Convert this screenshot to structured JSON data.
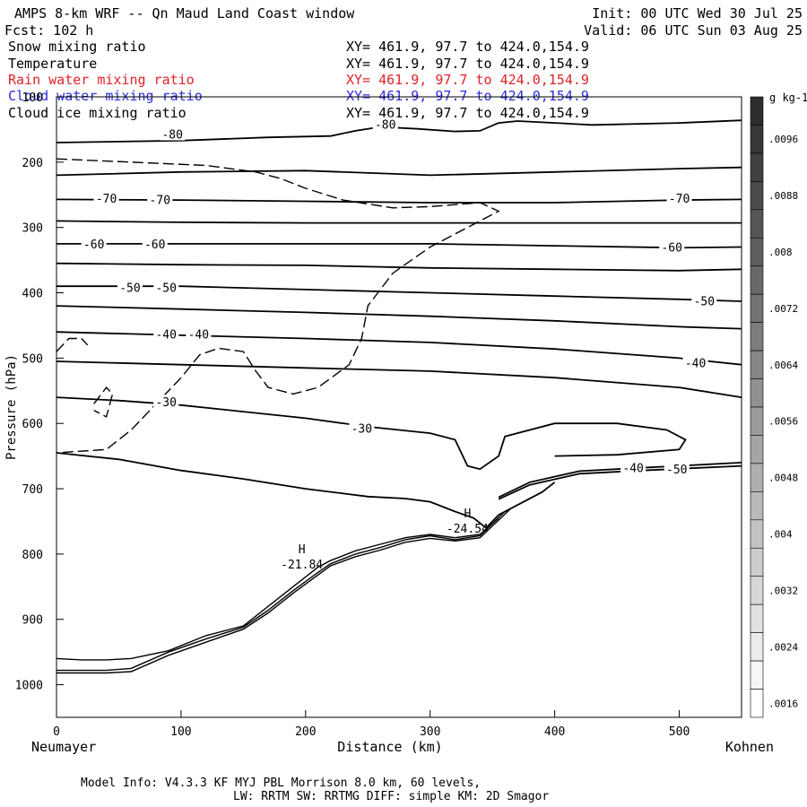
{
  "header": {
    "title": "AMPS 8-km WRF -- Qn Maud Land Coast window",
    "init": "Init: 00 UTC Wed 30 Jul 25",
    "fcst": "Fcst: 102 h",
    "valid": "Valid: 06 UTC Sun 03 Aug 25"
  },
  "fields": [
    {
      "label": "Snow mixing ratio",
      "xy": "XY= 461.9, 97.7 to 424.0,154.9",
      "color": "#000000"
    },
    {
      "label": "Temperature",
      "xy": "XY= 461.9, 97.7 to 424.0,154.9",
      "color": "#000000"
    },
    {
      "label": "Rain water mixing ratio",
      "xy": "XY= 461.9, 97.7 to 424.0,154.9",
      "color": "#e0222a"
    },
    {
      "label": "Cloud water mixing ratio",
      "xy": "XY= 461.9, 97.7 to 424.0,154.9",
      "color": "#2c2cd8"
    },
    {
      "label": "Cloud ice mixing ratio",
      "xy": "XY= 461.9, 97.7 to 424.0,154.9",
      "color": "#000000"
    }
  ],
  "footer": {
    "line1": "Model Info: V4.3.3   KF      MYJ PBL  Morrison             8.0 km,  60 levels,",
    "line2": "LW: RRTM SW: RRTMG   DIFF: simple KM: 2D Smagor"
  },
  "chart_data": {
    "type": "contour",
    "xlabel": "Distance (km)",
    "ylabel": "Pressure (hPa)",
    "xlim": [
      0,
      550
    ],
    "ylim": [
      1050,
      100
    ],
    "x_ticks": [
      0,
      100,
      200,
      300,
      400,
      500
    ],
    "y_ticks": [
      100,
      200,
      300,
      400,
      500,
      600,
      700,
      800,
      900,
      1000
    ],
    "endpoint_left": "Neumayer",
    "endpoint_right": "Kohnen",
    "colorbar": {
      "unit": "g kg-1",
      "ticks": [
        ".0096",
        ".0088",
        ".008",
        ".0072",
        ".0064",
        ".0056",
        ".0048",
        ".004",
        ".0032",
        ".0024",
        ".0016"
      ],
      "n_bins": 22
    },
    "highs": [
      {
        "label": "H",
        "value": "-21.84",
        "x": 197,
        "p": 810
      },
      {
        "label": "H",
        "value": "-24.54",
        "x": 330,
        "p": 755
      }
    ],
    "temperature_contours": [
      {
        "level": -80,
        "labels": [
          {
            "text": "-80",
            "x": 93,
            "p": 157
          },
          {
            "text": "-80",
            "x": 264,
            "p": 142
          }
        ],
        "points": [
          [
            0,
            170
          ],
          [
            100,
            167
          ],
          [
            170,
            162
          ],
          [
            220,
            160
          ],
          [
            240,
            152
          ],
          [
            260,
            146
          ],
          [
            290,
            149
          ],
          [
            320,
            153
          ],
          [
            340,
            152
          ],
          [
            355,
            140
          ],
          [
            370,
            137
          ],
          [
            390,
            139
          ],
          [
            430,
            143
          ],
          [
            500,
            140
          ],
          [
            550,
            136
          ]
        ]
      },
      {
        "level": -75,
        "labels": [],
        "points": [
          [
            0,
            220
          ],
          [
            100,
            215
          ],
          [
            200,
            213
          ],
          [
            300,
            220
          ],
          [
            400,
            215
          ],
          [
            500,
            210
          ],
          [
            550,
            208
          ]
        ]
      },
      {
        "level": -70,
        "labels": [
          {
            "text": "-70",
            "x": 40,
            "p": 255
          },
          {
            "text": "-70",
            "x": 83,
            "p": 257
          },
          {
            "text": "-70",
            "x": 500,
            "p": 255
          }
        ],
        "points": [
          [
            0,
            257
          ],
          [
            100,
            258
          ],
          [
            200,
            260
          ],
          [
            300,
            262
          ],
          [
            400,
            262
          ],
          [
            500,
            258
          ],
          [
            550,
            257
          ]
        ]
      },
      {
        "level": -65,
        "labels": [],
        "points": [
          [
            0,
            290
          ],
          [
            100,
            292
          ],
          [
            200,
            293
          ],
          [
            300,
            293
          ],
          [
            400,
            293
          ],
          [
            500,
            293
          ],
          [
            550,
            293
          ]
        ]
      },
      {
        "level": -60,
        "labels": [
          {
            "text": "-60",
            "x": 30,
            "p": 325
          },
          {
            "text": "-60",
            "x": 79,
            "p": 325
          },
          {
            "text": "-60",
            "x": 494,
            "p": 330
          }
        ],
        "points": [
          [
            0,
            325
          ],
          [
            100,
            325
          ],
          [
            200,
            325
          ],
          [
            300,
            325
          ],
          [
            400,
            328
          ],
          [
            500,
            331
          ],
          [
            550,
            330
          ]
        ]
      },
      {
        "level": -55,
        "labels": [],
        "points": [
          [
            0,
            355
          ],
          [
            100,
            357
          ],
          [
            200,
            358
          ],
          [
            300,
            362
          ],
          [
            400,
            364
          ],
          [
            500,
            366
          ],
          [
            550,
            364
          ]
        ]
      },
      {
        "level": -50,
        "labels": [
          {
            "text": "-50",
            "x": 59,
            "p": 392
          },
          {
            "text": "-50",
            "x": 88,
            "p": 392
          },
          {
            "text": "-50",
            "x": 520,
            "p": 412
          }
        ],
        "points": [
          [
            0,
            390
          ],
          [
            100,
            390
          ],
          [
            200,
            395
          ],
          [
            300,
            400
          ],
          [
            400,
            405
          ],
          [
            500,
            410
          ],
          [
            550,
            413
          ]
        ]
      },
      {
        "level": -45,
        "labels": [],
        "points": [
          [
            0,
            420
          ],
          [
            100,
            425
          ],
          [
            200,
            430
          ],
          [
            300,
            436
          ],
          [
            400,
            443
          ],
          [
            500,
            452
          ],
          [
            550,
            455
          ]
        ]
      },
      {
        "level": -40,
        "labels": [
          {
            "text": "-40",
            "x": 88,
            "p": 463
          },
          {
            "text": "-40",
            "x": 114,
            "p": 463
          },
          {
            "text": "-40",
            "x": 513,
            "p": 507
          }
        ],
        "points": [
          [
            0,
            460
          ],
          [
            100,
            465
          ],
          [
            200,
            470
          ],
          [
            300,
            476
          ],
          [
            400,
            486
          ],
          [
            500,
            500
          ],
          [
            550,
            510
          ]
        ]
      },
      {
        "level": -35,
        "labels": [],
        "points": [
          [
            0,
            505
          ],
          [
            100,
            510
          ],
          [
            200,
            515
          ],
          [
            300,
            520
          ],
          [
            400,
            530
          ],
          [
            500,
            545
          ],
          [
            550,
            560
          ]
        ]
      },
      {
        "level": -30,
        "labels": [
          {
            "text": "-30",
            "x": 88,
            "p": 567
          },
          {
            "text": "-30",
            "x": 245,
            "p": 607
          }
        ],
        "points": [
          [
            0,
            560
          ],
          [
            50,
            565
          ],
          [
            100,
            572
          ],
          [
            150,
            582
          ],
          [
            200,
            592
          ],
          [
            250,
            605
          ],
          [
            300,
            615
          ],
          [
            320,
            625
          ],
          [
            330,
            665
          ],
          [
            340,
            670
          ],
          [
            355,
            650
          ],
          [
            360,
            620
          ],
          [
            400,
            600
          ],
          [
            450,
            600
          ],
          [
            490,
            610
          ],
          [
            505,
            625
          ],
          [
            500,
            640
          ],
          [
            450,
            648
          ],
          [
            400,
            650
          ]
        ]
      },
      {
        "level": -25,
        "labels": [],
        "points": [
          [
            0,
            645
          ],
          [
            50,
            655
          ],
          [
            100,
            672
          ],
          [
            150,
            685
          ],
          [
            200,
            700
          ],
          [
            250,
            712
          ],
          [
            280,
            715
          ],
          [
            300,
            720
          ],
          [
            320,
            735
          ],
          [
            335,
            745
          ],
          [
            345,
            760
          ],
          [
            355,
            740
          ],
          [
            390,
            705
          ],
          [
            400,
            690
          ]
        ]
      },
      {
        "level": -40,
        "labels": [
          {
            "text": "-40",
            "x": 463,
            "p": 668
          }
        ],
        "points": [
          [
            355,
            713
          ],
          [
            380,
            690
          ],
          [
            420,
            673
          ],
          [
            470,
            668
          ],
          [
            550,
            660
          ]
        ]
      },
      {
        "level": -50,
        "labels": [
          {
            "text": "-50",
            "x": 498,
            "p": 670
          }
        ],
        "points": [
          [
            355,
            716
          ],
          [
            380,
            694
          ],
          [
            420,
            677
          ],
          [
            470,
            672
          ],
          [
            550,
            665
          ]
        ]
      }
    ],
    "terrain_lines": [
      {
        "points": [
          [
            0,
            960
          ],
          [
            20,
            962
          ],
          [
            40,
            962
          ],
          [
            60,
            960
          ],
          [
            90,
            948
          ],
          [
            120,
            925
          ],
          [
            150,
            910
          ],
          [
            170,
            880
          ],
          [
            190,
            850
          ],
          [
            210,
            820
          ],
          [
            220,
            810
          ],
          [
            240,
            795
          ],
          [
            260,
            785
          ],
          [
            280,
            775
          ],
          [
            300,
            770
          ],
          [
            320,
            775
          ],
          [
            340,
            770
          ],
          [
            355,
            745
          ]
        ]
      },
      {
        "points": [
          [
            0,
            978
          ],
          [
            40,
            978
          ],
          [
            60,
            975
          ],
          [
            90,
            950
          ],
          [
            120,
            930
          ],
          [
            150,
            912
          ],
          [
            170,
            886
          ],
          [
            190,
            856
          ],
          [
            210,
            828
          ],
          [
            220,
            815
          ],
          [
            240,
            800
          ],
          [
            260,
            790
          ],
          [
            280,
            778
          ],
          [
            300,
            772
          ],
          [
            320,
            778
          ],
          [
            340,
            772
          ],
          [
            360,
            735
          ]
        ]
      },
      {
        "points": [
          [
            0,
            982
          ],
          [
            40,
            982
          ],
          [
            60,
            980
          ],
          [
            90,
            955
          ],
          [
            120,
            935
          ],
          [
            150,
            915
          ],
          [
            170,
            890
          ],
          [
            190,
            860
          ],
          [
            210,
            832
          ],
          [
            220,
            818
          ],
          [
            240,
            804
          ],
          [
            260,
            794
          ],
          [
            280,
            782
          ],
          [
            300,
            776
          ],
          [
            320,
            780
          ],
          [
            340,
            775
          ],
          [
            365,
            730
          ]
        ]
      }
    ],
    "snow_dashed": [
      {
        "points": [
          [
            0,
            195
          ],
          [
            60,
            200
          ],
          [
            120,
            205
          ],
          [
            160,
            215
          ],
          [
            180,
            225
          ],
          [
            200,
            240
          ],
          [
            230,
            258
          ],
          [
            270,
            270
          ],
          [
            300,
            268
          ],
          [
            340,
            262
          ],
          [
            355,
            275
          ],
          [
            330,
            300
          ],
          [
            300,
            330
          ],
          [
            270,
            370
          ],
          [
            250,
            420
          ],
          [
            245,
            470
          ],
          [
            235,
            510
          ],
          [
            210,
            545
          ],
          [
            190,
            555
          ],
          [
            170,
            545
          ],
          [
            160,
            520
          ],
          [
            150,
            490
          ],
          [
            130,
            485
          ],
          [
            115,
            495
          ],
          [
            100,
            530
          ],
          [
            80,
            570
          ],
          [
            60,
            610
          ],
          [
            40,
            640
          ],
          [
            0,
            645
          ]
        ]
      },
      {
        "points": [
          [
            0,
            490
          ],
          [
            10,
            470
          ],
          [
            20,
            470
          ],
          [
            25,
            480
          ]
        ]
      },
      {
        "points": [
          [
            30,
            570
          ],
          [
            40,
            545
          ],
          [
            45,
            555
          ],
          [
            40,
            590
          ],
          [
            30,
            580
          ]
        ]
      }
    ]
  }
}
